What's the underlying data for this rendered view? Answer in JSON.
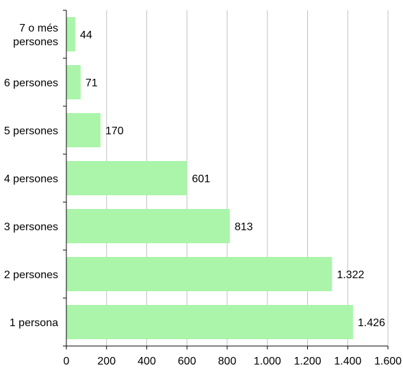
{
  "chart_data": {
    "type": "bar",
    "orientation": "horizontal",
    "categories": [
      "1 persona",
      "2 persones",
      "3 persones",
      "4 persones",
      "5 persones",
      "6 persones",
      "7 o més persones"
    ],
    "category_label_lines": [
      [
        "1 persona"
      ],
      [
        "2 persones"
      ],
      [
        "3 persones"
      ],
      [
        "4 persones"
      ],
      [
        "5 persones"
      ],
      [
        "6 persones"
      ],
      [
        "7 o més",
        "persones"
      ]
    ],
    "values": [
      1426,
      1322,
      813,
      601,
      170,
      71,
      44
    ],
    "value_labels": [
      "1.426",
      "1.322",
      "813",
      "601",
      "170",
      "71",
      "44"
    ],
    "x_ticks": [
      0,
      200,
      400,
      600,
      800,
      1000,
      1200,
      1400,
      1600
    ],
    "x_tick_labels": [
      "0",
      "200",
      "400",
      "600",
      "800",
      "1.000",
      "1.200",
      "1.400",
      "1.600"
    ],
    "xlim": [
      0,
      1600
    ],
    "title": "",
    "xlabel": "",
    "ylabel": "",
    "grid": "vertical gridlines",
    "legend": "none",
    "bar_color": "#AAF5AA",
    "grid_color": "#C0C0C0",
    "axis_color": "#000000"
  }
}
